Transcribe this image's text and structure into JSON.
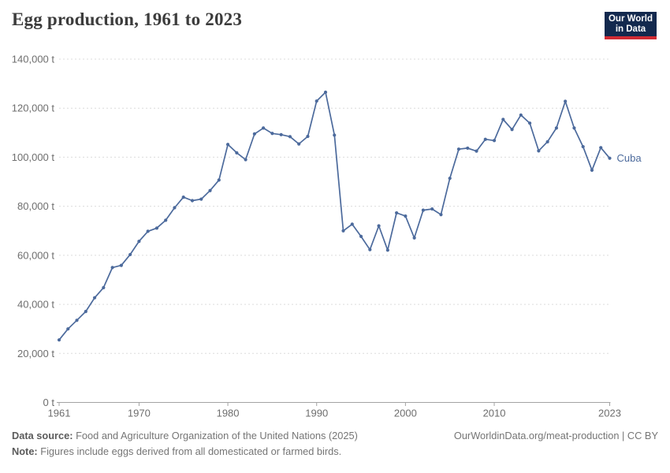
{
  "header": {
    "title": "Egg production, 1961 to 2023"
  },
  "logo": {
    "line1": "Our World",
    "line2": "in Data",
    "bg_color": "#13294e",
    "accent_color": "#d12b34"
  },
  "chart_data": {
    "type": "line",
    "title": "Egg production, 1961 to 2023",
    "unit": "t",
    "xlim": [
      1961,
      2023
    ],
    "ylim": [
      0,
      140000
    ],
    "x_ticks": [
      1961,
      1970,
      1980,
      1990,
      2000,
      2010,
      2023
    ],
    "y_ticks": [
      0,
      20000,
      40000,
      60000,
      80000,
      100000,
      120000,
      140000
    ],
    "grid": "horizontal-dashed",
    "legend_position": "end-of-line-label",
    "line_color": "#4c6a9c",
    "series": [
      {
        "name": "Cuba",
        "x": [
          1961,
          1962,
          1963,
          1964,
          1965,
          1966,
          1967,
          1968,
          1969,
          1970,
          1971,
          1972,
          1973,
          1974,
          1975,
          1976,
          1977,
          1978,
          1979,
          1980,
          1981,
          1982,
          1983,
          1984,
          1985,
          1986,
          1987,
          1988,
          1989,
          1990,
          1991,
          1992,
          1993,
          1994,
          1995,
          1996,
          1997,
          1998,
          1999,
          2000,
          2001,
          2002,
          2003,
          2004,
          2005,
          2006,
          2007,
          2008,
          2009,
          2010,
          2011,
          2012,
          2013,
          2014,
          2015,
          2016,
          2017,
          2018,
          2019,
          2020,
          2021,
          2022,
          2023
        ],
        "values": [
          25500,
          30000,
          33500,
          37100,
          42700,
          46800,
          55000,
          55900,
          60300,
          65700,
          69800,
          71100,
          74300,
          79400,
          83700,
          82300,
          82900,
          86400,
          90700,
          105200,
          101800,
          99000,
          109500,
          111900,
          109700,
          109200,
          108400,
          105400,
          108500,
          122900,
          126500,
          109000,
          70000,
          72700,
          67700,
          62300,
          72000,
          62100,
          77300,
          76000,
          67100,
          78400,
          78900,
          76600,
          91400,
          103300,
          103700,
          102500,
          107300,
          106800,
          115400,
          111300,
          117200,
          113900,
          102600,
          106300,
          111900,
          122800,
          111900,
          104300,
          94700,
          103900,
          99600
        ]
      }
    ]
  },
  "footer": {
    "source_label": "Data source:",
    "source_text": "Food and Agriculture Organization of the United Nations (2025)",
    "note_label": "Note:",
    "note_text": "Figures include eggs derived from all domesticated or farmed birds.",
    "right_text": "OurWorldinData.org/meat-production | CC BY"
  }
}
